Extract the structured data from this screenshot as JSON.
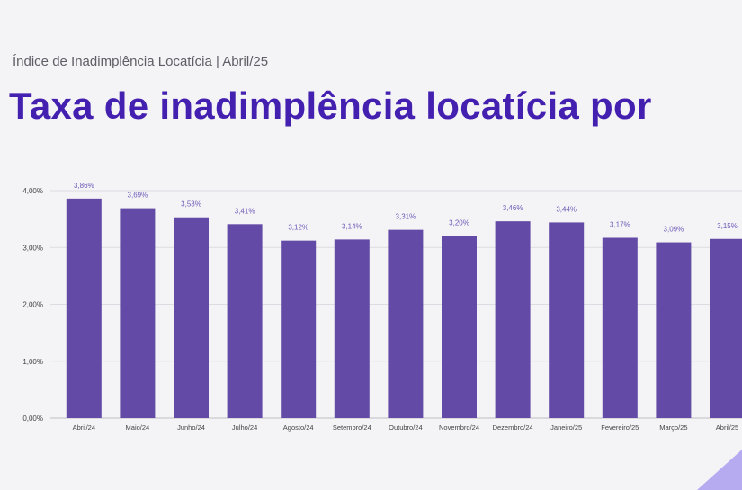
{
  "header": {
    "subtitle": "Índice de Inadimplência Locatícia | Abril/25",
    "title": "Taxa de inadimplência locatícia por"
  },
  "colors": {
    "bar": "#634aa6",
    "title": "#4420b0",
    "data_label": "#6e5ab8",
    "grid": "#dcdce2",
    "axis_text": "#444444",
    "accent_shape": "#b6abf0"
  },
  "chart_data": {
    "type": "bar",
    "categories": [
      "Abril/24",
      "Maio/24",
      "Junho/24",
      "Julho/24",
      "Agosto/24",
      "Setembro/24",
      "Outubro/24",
      "Novembro/24",
      "Dezembro/24",
      "Janeiro/25",
      "Fevereiro/25",
      "Março/25",
      "Abril/25"
    ],
    "values": [
      3.86,
      3.69,
      3.53,
      3.41,
      3.12,
      3.14,
      3.31,
      3.2,
      3.46,
      3.44,
      3.17,
      3.09,
      3.15
    ],
    "data_labels": [
      "3,86%",
      "3,69%",
      "3,53%",
      "3,41%",
      "3,12%",
      "3,14%",
      "3,31%",
      "3,20%",
      "3,46%",
      "3,44%",
      "3,17%",
      "3,09%",
      "3,15%"
    ],
    "y_ticks": [
      0,
      1,
      2,
      3,
      4
    ],
    "y_tick_labels": [
      "0,00%",
      "1,00%",
      "2,00%",
      "3,00%",
      "4,00%"
    ],
    "ylim": [
      0,
      4
    ],
    "grid": true,
    "legend": "none"
  }
}
